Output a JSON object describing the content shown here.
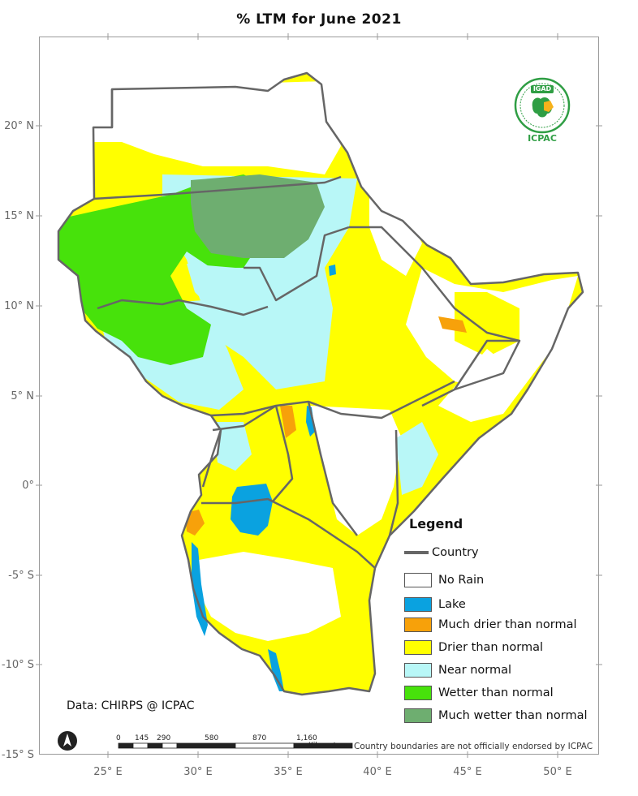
{
  "title": "% LTM for  June 2021",
  "axes": {
    "latitude_ticks": [
      "20° N",
      "15° N",
      "10° N",
      "5° N",
      "0°",
      "-5° S",
      "-10° S",
      "-15° S"
    ],
    "longitude_ticks": [
      "25° E",
      "30° E",
      "35° E",
      "40° E",
      "45° E",
      "50° E"
    ]
  },
  "legend": {
    "title": "Legend",
    "country_label": "Country",
    "items": [
      {
        "label": "No Rain",
        "color": "#ffffff"
      },
      {
        "label": "Lake",
        "color": "#0aa2e0"
      },
      {
        "label": "Much drier than normal",
        "color": "#f7a10a"
      },
      {
        "label": "Drier than normal",
        "color": "#ffff00"
      },
      {
        "label": "Near normal",
        "color": "#b8f7f7"
      },
      {
        "label": "Wetter than normal",
        "color": "#47e20b"
      },
      {
        "label": "Much wetter than normal",
        "color": "#6eae70"
      }
    ]
  },
  "credit": "Data: CHIRPS @ ICPAC",
  "disclaimer": "Country boundaries are not officially endorsed by ICPAC",
  "scale_bar": {
    "ticks": [
      "0",
      "145",
      "290",
      "580",
      "870",
      "1,160"
    ],
    "unit": "Kilometers"
  },
  "logo": {
    "top_text": "IGAD",
    "bottom_text": "ICPAC"
  },
  "colors": {
    "border": "#666666",
    "no_rain": "#ffffff",
    "lake": "#0aa2e0",
    "much_drier": "#f7a10a",
    "drier": "#ffff00",
    "near_normal": "#b8f7f7",
    "wetter": "#47e20b",
    "much_wetter": "#6eae70"
  }
}
